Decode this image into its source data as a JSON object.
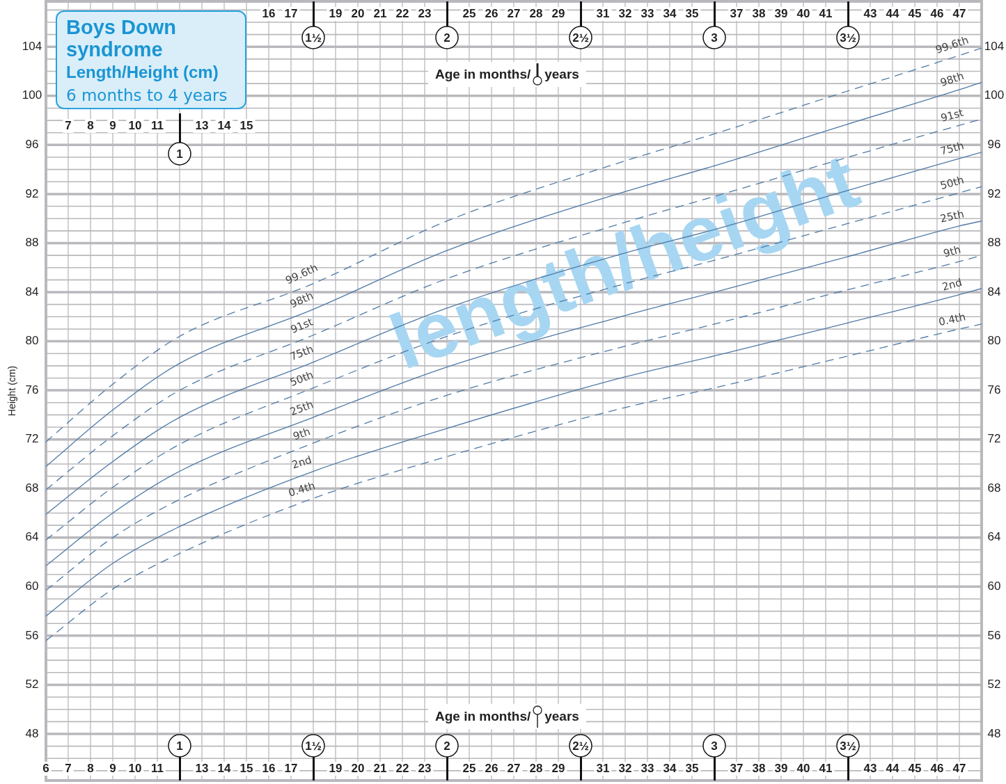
{
  "chart_data": {
    "type": "line",
    "title": "Boys Down syndrome",
    "subtitle": "Length/Height (cm)",
    "annotations": [
      "6 months to 4 years",
      "length/height",
      {
        "text": "1",
        "x": 12
      },
      {
        "text": "1½",
        "x": 18
      },
      {
        "text": "2",
        "x": 24
      },
      {
        "text": "2½",
        "x": 30
      },
      {
        "text": "3",
        "x": 36
      },
      {
        "text": "3½",
        "x": 42
      },
      {
        "text": "7",
        "x": 7
      },
      {
        "text": "8",
        "x": 8
      },
      {
        "text": "9",
        "x": 9
      },
      {
        "text": "10",
        "x": 10
      },
      {
        "text": "11",
        "x": 11
      },
      {
        "text": "13",
        "x": 13
      },
      {
        "text": "14",
        "x": 14
      },
      {
        "text": "15",
        "x": 15
      }
    ],
    "xlabel": "Age in months/ years",
    "ylabel": "Height (cm)",
    "x": [
      6,
      9,
      12,
      18,
      24,
      32,
      36,
      42,
      47,
      48
    ],
    "xlim": [
      6,
      48
    ],
    "xticks": [
      6,
      7,
      8,
      9,
      10,
      11,
      {
        "value": 12,
        "label": null
      },
      13,
      14,
      15,
      16,
      17,
      {
        "value": 18,
        "label": null
      },
      19,
      20,
      21,
      22,
      23,
      {
        "value": 24,
        "label": null
      },
      25,
      26,
      27,
      28,
      29,
      {
        "value": 30,
        "label": null
      },
      31,
      32,
      33,
      34,
      35,
      {
        "value": 36,
        "label": null
      },
      37,
      38,
      39,
      40,
      41,
      {
        "value": 42,
        "label": null
      },
      43,
      44,
      45,
      46,
      47
    ],
    "x2lim": [
      6,
      48
    ],
    "x2ticks": [
      16,
      17,
      19,
      20,
      21,
      22,
      23,
      25,
      26,
      27,
      28,
      29,
      31,
      32,
      33,
      34,
      35,
      37,
      38,
      39,
      40,
      41,
      43,
      44,
      45,
      46,
      47
    ],
    "ylim": [
      44.2,
      107.7
    ],
    "yticks": [
      48,
      52,
      56,
      60,
      64,
      68,
      72,
      76,
      80,
      84,
      88,
      92,
      96,
      100,
      104
    ],
    "y2lim": [
      44.2,
      107.7
    ],
    "y2ticks": [
      48,
      52,
      56,
      60,
      64,
      68,
      72,
      76,
      80,
      84,
      88,
      92,
      96,
      100,
      104
    ],
    "grid": true,
    "legend": false,
    "marker": "none",
    "series": [
      {
        "name": "99.6th",
        "color": "#4f7aa6",
        "line_style": "dashed",
        "values": [
          71.8,
          76.5,
          80.4,
          84.7,
          89.8,
          94.7,
          96.9,
          100.4,
          103.3,
          103.9
        ]
      },
      {
        "name": "98th",
        "color": "#4f7aa6",
        "line_style": "solid",
        "values": [
          69.8,
          74.4,
          78.2,
          82.6,
          87.4,
          92.2,
          94.3,
          97.7,
          100.5,
          101.1
        ]
      },
      {
        "name": "91st",
        "color": "#4f7aa6",
        "line_style": "dashed",
        "values": [
          67.9,
          72.3,
          76.0,
          80.5,
          85.1,
          89.7,
          91.8,
          95.0,
          97.6,
          98.1
        ]
      },
      {
        "name": "75th",
        "color": "#4f7aa6",
        "line_style": "solid",
        "values": [
          65.9,
          70.2,
          73.8,
          78.3,
          82.7,
          87.2,
          89.1,
          92.3,
          94.9,
          95.4
        ]
      },
      {
        "name": "50th",
        "color": "#4f7aa6",
        "line_style": "dashed",
        "values": [
          63.8,
          68.1,
          71.6,
          76.2,
          80.4,
          84.7,
          86.6,
          89.6,
          92.1,
          92.6
        ]
      },
      {
        "name": "25th",
        "color": "#4f7aa6",
        "line_style": "solid",
        "values": [
          61.7,
          66.0,
          69.4,
          73.8,
          77.9,
          82.1,
          84.0,
          86.9,
          89.4,
          89.8
        ]
      },
      {
        "name": "9th",
        "color": "#4f7aa6",
        "line_style": "dashed",
        "values": [
          59.7,
          64.0,
          67.1,
          71.7,
          75.6,
          79.6,
          81.4,
          84.2,
          86.5,
          87.0
        ]
      },
      {
        "name": "2nd",
        "color": "#4f7aa6",
        "line_style": "solid",
        "values": [
          57.6,
          61.9,
          64.9,
          69.4,
          72.9,
          77.1,
          78.8,
          81.5,
          83.8,
          84.3
        ]
      },
      {
        "name": "0.4th",
        "color": "#4f7aa6",
        "line_style": "dashed",
        "values": [
          55.6,
          59.8,
          62.7,
          67.2,
          70.6,
          74.6,
          76.2,
          78.8,
          81.0,
          81.4
        ]
      }
    ]
  }
}
